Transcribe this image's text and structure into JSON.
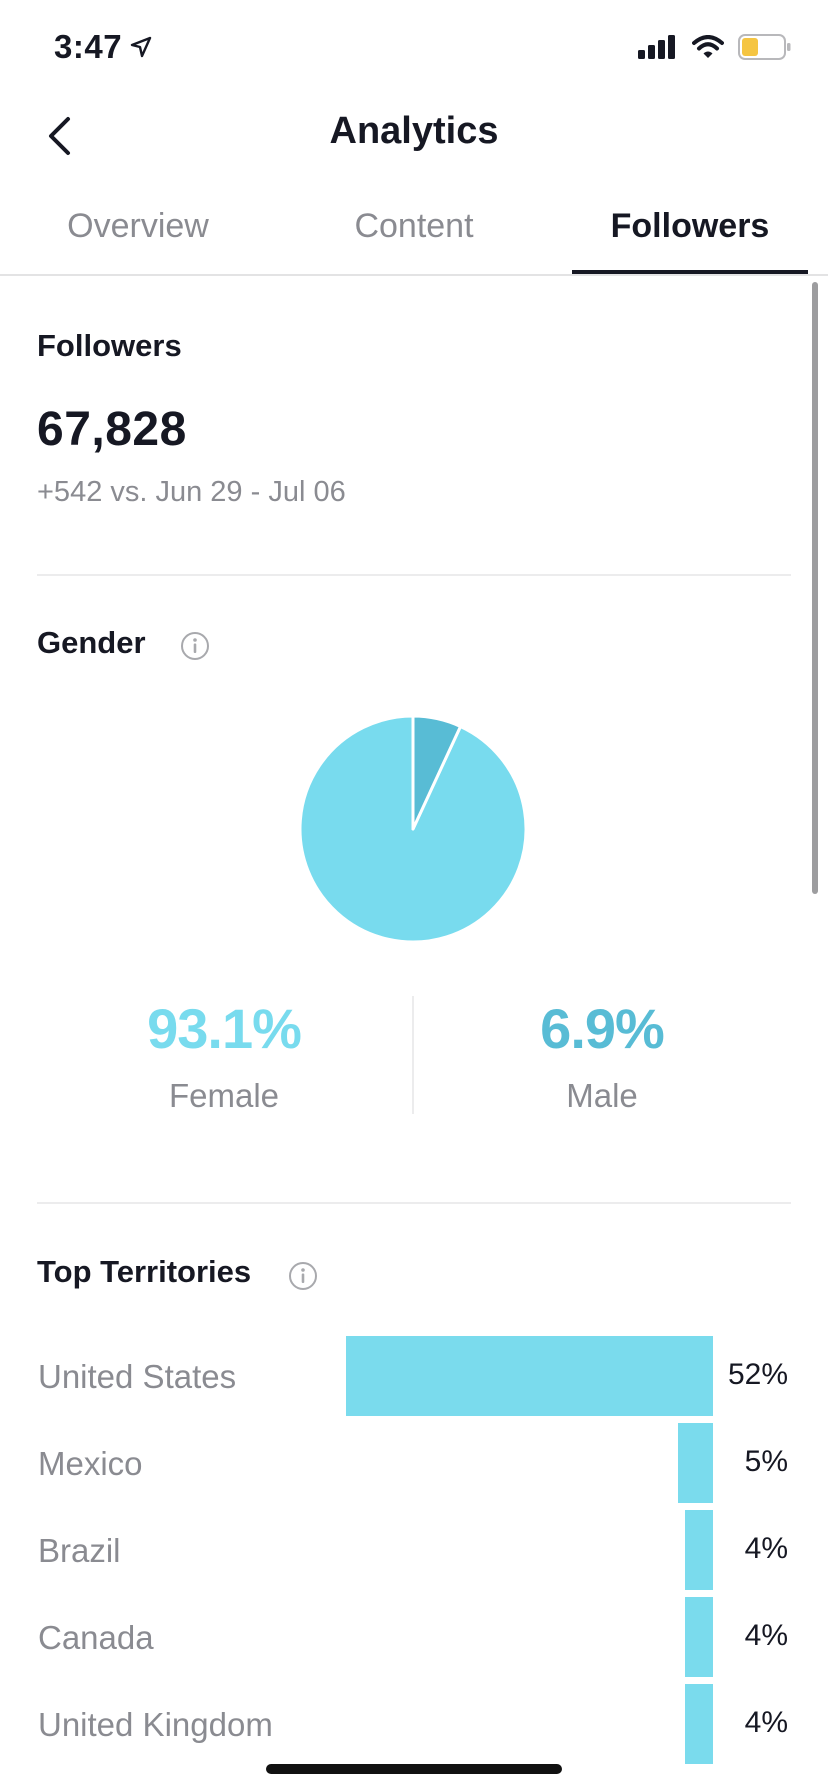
{
  "status_bar": {
    "time": "3:47",
    "icons": [
      "location-arrow-icon",
      "cellular-signal-icon",
      "wifi-icon",
      "battery-icon"
    ],
    "battery_color": "#f5c542"
  },
  "header": {
    "title": "Analytics",
    "back_icon": "chevron-left-icon"
  },
  "tabs": [
    {
      "label": "Overview",
      "active": false
    },
    {
      "label": "Content",
      "active": false
    },
    {
      "label": "Followers",
      "active": true
    }
  ],
  "followers": {
    "title": "Followers",
    "count": "67,828",
    "delta": "+542 vs. Jun 29 - Jul 06"
  },
  "gender": {
    "title": "Gender",
    "info_icon": "info-icon",
    "female": {
      "percent": "93.1%",
      "label": "Female",
      "value": 93.1,
      "color": "#78dbee"
    },
    "male": {
      "percent": "6.9%",
      "label": "Male",
      "value": 6.9,
      "color": "#58bcd5"
    }
  },
  "top_territories": {
    "title": "Top Territories",
    "info_icon": "info-icon",
    "bar_color": "#7adbed",
    "items": [
      {
        "name": "United States",
        "percent": "52%",
        "value": 52
      },
      {
        "name": "Mexico",
        "percent": "5%",
        "value": 5
      },
      {
        "name": "Brazil",
        "percent": "4%",
        "value": 4
      },
      {
        "name": "Canada",
        "percent": "4%",
        "value": 4
      },
      {
        "name": "United Kingdom",
        "percent": "4%",
        "value": 4
      }
    ]
  }
}
